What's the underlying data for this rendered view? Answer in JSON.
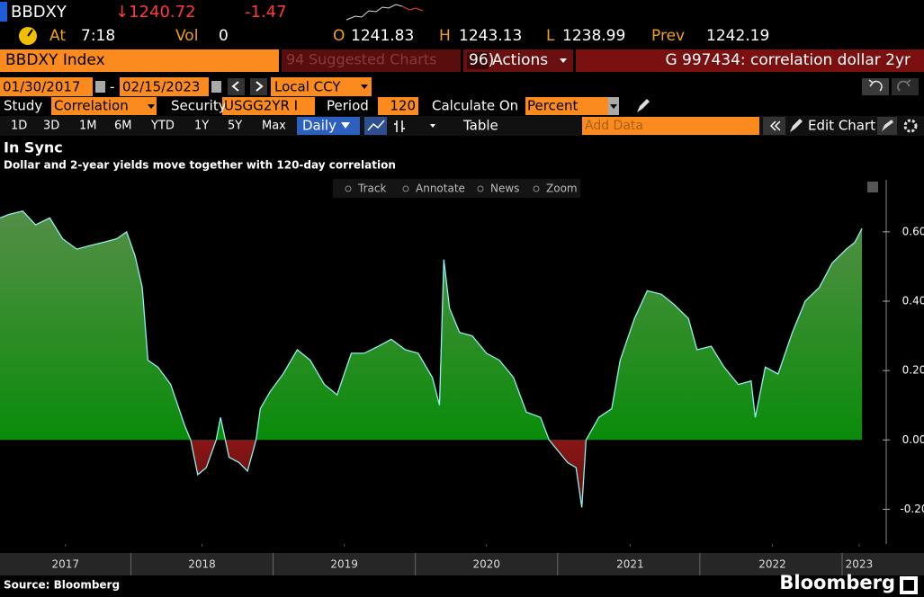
{
  "quote": {
    "ticker": "BBDXY",
    "last": "↓1240.72",
    "change": "-1.47",
    "time_label": "At",
    "time": "7:18",
    "volume_label": "Vol",
    "volume": "0",
    "open_label": "O",
    "open": "1241.83",
    "high_label": "H",
    "high": "1243.13",
    "low_label": "L",
    "low": "1238.99",
    "prev_label": "Prev",
    "prev": "1242.19"
  },
  "tabs": {
    "security": "BBDXY Index",
    "suggested_number": "94",
    "suggested": "Suggested Charts",
    "actions_number": "96)",
    "actions": "Actions",
    "chart_name": "G 997434: correlation dollar 2yr"
  },
  "controls": {
    "start_date": "01/30/2017",
    "date_separator": "-",
    "end_date": "02/15/2023",
    "currency": "Local CCY",
    "study_label": "Study",
    "study": "Correlation",
    "security_label": "Security",
    "security": "USGG2YR I",
    "period_label": "Period",
    "period": "120",
    "calculate_label": "Calculate On",
    "calculate": "Percent",
    "periods": [
      "1D",
      "3D",
      "1M",
      "6M",
      "YTD",
      "1Y",
      "5Y",
      "Max"
    ],
    "frequency": "Daily",
    "table": "Table",
    "add_data": "Add Data",
    "edit_chart": "Edit Chart"
  },
  "toolbar": [
    "Track",
    "Annotate",
    "News",
    "Zoom"
  ],
  "brand": "Bloomberg",
  "chart_data": {
    "type": "area",
    "title": "In Sync",
    "subtitle": "Dollar and 2-year yields move together with 120-day correlation",
    "source": "Source: Bloomberg",
    "x": [
      2017.08,
      2017.14,
      2017.24,
      2017.33,
      2017.43,
      2017.52,
      2017.62,
      2017.71,
      2017.81,
      2017.9,
      2017.97,
      2018.03,
      2018.08,
      2018.12,
      2018.19,
      2018.28,
      2018.38,
      2018.42,
      2018.47,
      2018.53,
      2018.6,
      2018.63,
      2018.69,
      2018.76,
      2018.82,
      2018.88,
      2018.91,
      2018.98,
      2019.07,
      2019.17,
      2019.26,
      2019.36,
      2019.45,
      2019.55,
      2019.64,
      2019.74,
      2019.83,
      2019.93,
      2020.02,
      2020.12,
      2020.17,
      2020.2,
      2020.24,
      2020.31,
      2020.4,
      2020.5,
      2020.59,
      2020.69,
      2020.78,
      2020.88,
      2020.94,
      2021.0,
      2021.07,
      2021.13,
      2021.17,
      2021.2,
      2021.29,
      2021.38,
      2021.44,
      2021.54,
      2021.63,
      2021.73,
      2021.82,
      2021.92,
      2021.98,
      2022.08,
      2022.17,
      2022.27,
      2022.36,
      2022.39,
      2022.46,
      2022.55,
      2022.65,
      2022.74,
      2022.84,
      2022.93,
      2023.03,
      2023.09,
      2023.14
    ],
    "series": [
      {
        "name": "correlation",
        "color": "#8ff0ee",
        "values": [
          0.64,
          0.65,
          0.66,
          0.62,
          0.64,
          0.58,
          0.55,
          0.56,
          0.57,
          0.58,
          0.6,
          0.53,
          0.44,
          0.23,
          0.21,
          0.16,
          0.04,
          0.0,
          -0.1,
          -0.08,
          0.0,
          0.065,
          -0.05,
          -0.065,
          -0.09,
          0.0,
          0.09,
          0.14,
          0.19,
          0.26,
          0.23,
          0.16,
          0.13,
          0.25,
          0.25,
          0.27,
          0.29,
          0.26,
          0.25,
          0.18,
          0.1,
          0.52,
          0.38,
          0.31,
          0.3,
          0.25,
          0.23,
          0.18,
          0.08,
          0.065,
          0.0,
          -0.03,
          -0.065,
          -0.08,
          -0.195,
          0.0,
          0.065,
          0.09,
          0.23,
          0.35,
          0.43,
          0.42,
          0.39,
          0.35,
          0.26,
          0.27,
          0.21,
          0.16,
          0.17,
          0.065,
          0.21,
          0.19,
          0.31,
          0.4,
          0.44,
          0.51,
          0.55,
          0.57,
          0.61
        ]
      }
    ],
    "positive_color": "#0a8c0a",
    "negative_color": "#8a1616",
    "xlim": [
      2017.08,
      2023.31
    ],
    "xticks": [
      {
        "value": 2017.54,
        "label": "2017"
      },
      {
        "value": 2018.5,
        "label": "2018"
      },
      {
        "value": 2019.5,
        "label": "2019"
      },
      {
        "value": 2020.5,
        "label": "2020"
      },
      {
        "value": 2021.51,
        "label": "2021"
      },
      {
        "value": 2022.51,
        "label": "2022"
      },
      {
        "value": 2023.12,
        "label": "2023"
      }
    ],
    "ylim": [
      -0.3,
      0.75
    ],
    "yticks": [
      {
        "value": 0.6,
        "label": "0.60"
      },
      {
        "value": 0.4,
        "label": "0.40"
      },
      {
        "value": 0.2,
        "label": "0.20"
      },
      {
        "value": 0,
        "label": "0.00"
      },
      {
        "value": -0.2,
        "label": "-0.20"
      }
    ],
    "grid": false
  }
}
